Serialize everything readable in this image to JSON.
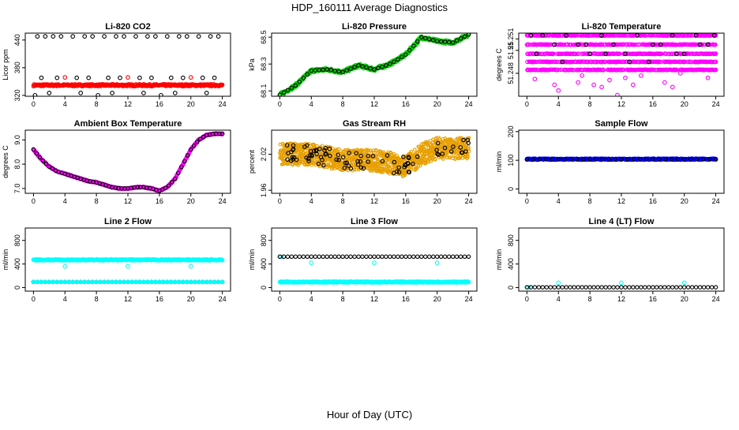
{
  "figure": {
    "title": "HDP_160111  Average Diagnostics",
    "xlabel": "Hour of Day (UTC)"
  },
  "colors": {
    "black": "#000000",
    "red": "#ff0000",
    "green": "#00cc00",
    "magenta": "#ff00ff",
    "orange": "#e8a000",
    "blue": "#0000ff",
    "cyan": "#00ffff"
  },
  "chart_data": [
    {
      "type": "scatter",
      "title": "Li-820 CO2",
      "ylabel": "Licor ppm",
      "xlim": [
        0,
        24
      ],
      "ylim": [
        318,
        455
      ],
      "xticks": [
        "0",
        "4",
        "8",
        "12",
        "16",
        "20",
        "24"
      ],
      "yticks": [
        {
          "v": 320,
          "label": "320"
        },
        {
          "v": 380,
          "label": "380"
        },
        {
          "v": 440,
          "label": "440"
        }
      ],
      "series": [
        {
          "color": "red",
          "kind": "dense",
          "pattern": "flat",
          "mean": 342,
          "amp": 2,
          "rows": [
            342
          ]
        },
        {
          "color": "red",
          "kind": "points",
          "x": [
            4,
            12,
            20
          ],
          "y": [
            359,
            359,
            359
          ]
        },
        {
          "color": "black",
          "kind": "points",
          "x": [
            0.5,
            1.5,
            2.5,
            3.5,
            5.0,
            6.5,
            7.5,
            9.0,
            10.5,
            11.5,
            13.0,
            14.5,
            15.5,
            17.0,
            18.5,
            19.5,
            21.0,
            22.5,
            23.5,
            1.0,
            3.0,
            5.5,
            7.0,
            9.5,
            11.0,
            13.5,
            15.0,
            17.5,
            19.0,
            21.5,
            23.0,
            2.0,
            6.0,
            10.0,
            14.0,
            18.0,
            22.0,
            0.2,
            8.2,
            16.2
          ],
          "y": [
            448,
            448,
            448,
            448,
            448,
            448,
            448,
            448,
            448,
            448,
            448,
            448,
            448,
            448,
            448,
            448,
            448,
            448,
            448,
            358,
            358,
            358,
            358,
            358,
            358,
            358,
            358,
            358,
            358,
            358,
            358,
            325,
            325,
            325,
            325,
            325,
            325,
            320,
            320,
            320
          ]
        }
      ]
    },
    {
      "type": "scatter",
      "title": "Li-820 Pressure",
      "ylabel": "kPa",
      "xlim": [
        0,
        24
      ],
      "ylim": [
        68.06,
        68.53
      ],
      "xticks": [
        "0",
        "4",
        "8",
        "12",
        "16",
        "20",
        "24"
      ],
      "yticks": [
        {
          "v": 68.1,
          "label": "68.1"
        },
        {
          "v": 68.3,
          "label": "68.3"
        },
        {
          "v": 68.5,
          "label": "68.5"
        }
      ],
      "series": [
        {
          "color": "green",
          "kind": "dense",
          "pattern": "curve",
          "jitter": 0.012,
          "curve": [
            [
              0,
              68.07
            ],
            [
              2,
              68.14
            ],
            [
              4,
              68.25
            ],
            [
              6,
              68.26
            ],
            [
              8,
              68.24
            ],
            [
              10,
              68.29
            ],
            [
              12,
              68.26
            ],
            [
              14,
              68.3
            ],
            [
              16,
              68.37
            ],
            [
              18,
              68.5
            ],
            [
              20,
              68.47
            ],
            [
              22,
              68.46
            ],
            [
              24,
              68.52
            ]
          ]
        },
        {
          "color": "black",
          "kind": "curvepoints",
          "every": 0.5,
          "curve": [
            [
              0,
              68.07
            ],
            [
              2,
              68.14
            ],
            [
              4,
              68.25
            ],
            [
              6,
              68.26
            ],
            [
              8,
              68.24
            ],
            [
              10,
              68.29
            ],
            [
              12,
              68.26
            ],
            [
              14,
              68.3
            ],
            [
              16,
              68.37
            ],
            [
              18,
              68.5
            ],
            [
              20,
              68.47
            ],
            [
              22,
              68.46
            ],
            [
              24,
              68.52
            ]
          ]
        }
      ]
    },
    {
      "type": "scatter",
      "title": "Li-820 Temperature",
      "ylabel": "degrees C",
      "xlim": [
        0,
        24
      ],
      "ylim": [
        51.246,
        51.2515
      ],
      "xticks": [
        "0",
        "4",
        "8",
        "12",
        "16",
        "20",
        "24"
      ],
      "yticks": [
        {
          "v": 51.248,
          "label": "51.248"
        },
        {
          "v": 51.25,
          "label": "51.25"
        },
        {
          "v": 51.251,
          "label": "51.251"
        }
      ],
      "series": [
        {
          "color": "magenta",
          "kind": "dense",
          "pattern": "rows",
          "jitter": 4e-05,
          "rows": [
            51.2513,
            51.2505,
            51.2497,
            51.249,
            51.2483
          ]
        },
        {
          "color": "magenta",
          "kind": "points",
          "x": [
            1.0,
            3.5,
            4.0,
            6.5,
            7.0,
            8.5,
            9.5,
            10.5,
            11.5,
            12.5,
            13.5,
            14.5,
            17.5,
            18.5,
            19.5,
            23.0
          ],
          "y": [
            51.2475,
            51.247,
            51.2465,
            51.2472,
            51.2478,
            51.247,
            51.2468,
            51.2474,
            51.2461,
            51.2476,
            51.247,
            51.2478,
            51.2472,
            51.2468,
            51.248,
            51.2476
          ]
        },
        {
          "color": "black",
          "kind": "points",
          "x": [
            0.5,
            2.0,
            3.5,
            5.0,
            6.5,
            8.0,
            9.5,
            11.0,
            12.5,
            14.0,
            15.5,
            17.0,
            18.5,
            20.0,
            21.5,
            23.0,
            23.8,
            1.2,
            4.5,
            7.5,
            10.0,
            13.0,
            16.0,
            19.0,
            22.0
          ],
          "y": [
            51.2513,
            51.2513,
            51.2505,
            51.2513,
            51.2505,
            51.2497,
            51.2513,
            51.2505,
            51.2497,
            51.2513,
            51.249,
            51.2505,
            51.2513,
            51.2497,
            51.2513,
            51.2505,
            51.2513,
            51.2497,
            51.249,
            51.2505,
            51.2497,
            51.249,
            51.2505,
            51.2497,
            51.2505
          ]
        }
      ]
    },
    {
      "type": "scatter",
      "title": "Ambient Box Temperature",
      "ylabel": "degrees C",
      "xlim": [
        0,
        24
      ],
      "ylim": [
        6.8,
        9.4
      ],
      "xticks": [
        "0",
        "4",
        "8",
        "12",
        "16",
        "20",
        "24"
      ],
      "yticks": [
        {
          "v": 7.0,
          "label": "7.0"
        },
        {
          "v": 8.0,
          "label": "8.0"
        },
        {
          "v": 9.0,
          "label": "9.0"
        }
      ],
      "series": [
        {
          "color": "magenta",
          "kind": "dense",
          "pattern": "curve",
          "jitter": 0.02,
          "curve": [
            [
              0,
              8.6
            ],
            [
              1,
              8.2
            ],
            [
              2,
              7.9
            ],
            [
              3,
              7.7
            ],
            [
              4,
              7.6
            ],
            [
              5,
              7.5
            ],
            [
              6,
              7.4
            ],
            [
              7,
              7.3
            ],
            [
              8,
              7.25
            ],
            [
              9,
              7.15
            ],
            [
              10,
              7.05
            ],
            [
              11,
              7.0
            ],
            [
              12,
              7.0
            ],
            [
              13,
              7.05
            ],
            [
              14,
              7.05
            ],
            [
              15,
              7.0
            ],
            [
              16,
              6.9
            ],
            [
              17,
              7.05
            ],
            [
              18,
              7.4
            ],
            [
              19,
              8.0
            ],
            [
              20,
              8.6
            ],
            [
              21,
              9.0
            ],
            [
              22,
              9.2
            ],
            [
              23,
              9.25
            ],
            [
              24,
              9.25
            ]
          ]
        },
        {
          "color": "black",
          "kind": "curvepoints",
          "every": 0.4,
          "curve": [
            [
              0,
              8.6
            ],
            [
              1,
              8.2
            ],
            [
              2,
              7.9
            ],
            [
              3,
              7.7
            ],
            [
              4,
              7.6
            ],
            [
              5,
              7.5
            ],
            [
              6,
              7.4
            ],
            [
              7,
              7.3
            ],
            [
              8,
              7.25
            ],
            [
              9,
              7.15
            ],
            [
              10,
              7.05
            ],
            [
              11,
              7.0
            ],
            [
              12,
              7.0
            ],
            [
              13,
              7.05
            ],
            [
              14,
              7.05
            ],
            [
              15,
              7.0
            ],
            [
              16,
              6.9
            ],
            [
              17,
              7.05
            ],
            [
              18,
              7.4
            ],
            [
              19,
              8.0
            ],
            [
              20,
              8.6
            ],
            [
              21,
              9.0
            ],
            [
              22,
              9.2
            ],
            [
              23,
              9.25
            ],
            [
              24,
              9.25
            ]
          ]
        }
      ]
    },
    {
      "type": "scatter",
      "title": "Gas Stream RH",
      "ylabel": "percent",
      "xlim": [
        0,
        24
      ],
      "ylim": [
        1.955,
        2.06
      ],
      "xticks": [
        "0",
        "4",
        "8",
        "12",
        "16",
        "20",
        "24"
      ],
      "yticks": [
        {
          "v": 1.96,
          "label": "1.96"
        },
        {
          "v": 2.02,
          "label": "2.02"
        }
      ],
      "series": [
        {
          "color": "orange",
          "kind": "dense",
          "pattern": "band",
          "jitter": 0.018,
          "curve": [
            [
              0,
              2.02
            ],
            [
              4,
              2.02
            ],
            [
              8,
              2.01
            ],
            [
              12,
              2.01
            ],
            [
              16,
              2.0
            ],
            [
              18,
              2.02
            ],
            [
              20,
              2.03
            ],
            [
              24,
              2.03
            ]
          ]
        },
        {
          "color": "black",
          "kind": "scatterband",
          "count": 90,
          "jitter": 0.015,
          "curve": [
            [
              0,
              2.02
            ],
            [
              4,
              2.02
            ],
            [
              8,
              2.01
            ],
            [
              12,
              2.01
            ],
            [
              16,
              2.0
            ],
            [
              18,
              2.02
            ],
            [
              20,
              2.03
            ],
            [
              24,
              2.03
            ]
          ]
        }
      ]
    },
    {
      "type": "scatter",
      "title": "Sample Flow",
      "ylabel": "ml/min",
      "xlim": [
        0,
        24
      ],
      "ylim": [
        -15,
        205
      ],
      "xticks": [
        "0",
        "4",
        "8",
        "12",
        "16",
        "20",
        "24"
      ],
      "yticks": [
        {
          "v": 0,
          "label": "0"
        },
        {
          "v": 100,
          "label": "100"
        },
        {
          "v": 200,
          "label": "200"
        }
      ],
      "series": [
        {
          "color": "blue",
          "kind": "dense",
          "pattern": "flat",
          "amp": 2,
          "rows": [
            104
          ]
        },
        {
          "color": "black",
          "kind": "linepoints",
          "every": 0.8,
          "y": 104
        }
      ]
    },
    {
      "type": "scatter",
      "title": "Line 2 Flow",
      "ylabel": "ml/min",
      "xlim": [
        0,
        24
      ],
      "ylim": [
        -60,
        1010
      ],
      "xticks": [
        "0",
        "4",
        "8",
        "12",
        "16",
        "20",
        "24"
      ],
      "yticks": [
        {
          "v": 0,
          "label": "0"
        },
        {
          "v": 400,
          "label": "400"
        },
        {
          "v": 800,
          "label": "800"
        }
      ],
      "series": [
        {
          "color": "cyan",
          "kind": "dense",
          "pattern": "flat",
          "amp": 8,
          "rows": [
            470
          ]
        },
        {
          "color": "cyan",
          "kind": "points",
          "x": [
            0.2,
            4,
            12,
            20
          ],
          "y": [
            470,
            360,
            360,
            360
          ]
        },
        {
          "color": "black",
          "kind": "linepoints",
          "every": 0.5,
          "y": 95
        },
        {
          "color": "cyan",
          "kind": "linepoints",
          "every": 0.5,
          "y": 95,
          "fill": true
        }
      ]
    },
    {
      "type": "scatter",
      "title": "Line 3 Flow",
      "ylabel": "ml/min",
      "xlim": [
        0,
        24
      ],
      "ylim": [
        -60,
        1010
      ],
      "xticks": [
        "0",
        "4",
        "8",
        "12",
        "16",
        "20",
        "24"
      ],
      "yticks": [
        {
          "v": 0,
          "label": "0"
        },
        {
          "v": 400,
          "label": "400"
        },
        {
          "v": 800,
          "label": "800"
        }
      ],
      "series": [
        {
          "color": "cyan",
          "kind": "dense",
          "pattern": "flat",
          "amp": 8,
          "rows": [
            95
          ]
        },
        {
          "color": "cyan",
          "kind": "points",
          "x": [
            0.2,
            4,
            12,
            20
          ],
          "y": [
            520,
            420,
            420,
            420
          ]
        },
        {
          "color": "black",
          "kind": "linepoints",
          "every": 0.5,
          "y": 525
        }
      ]
    },
    {
      "type": "scatter",
      "title": "Line 4 (LT) Flow",
      "ylabel": "ml/min",
      "xlim": [
        0,
        24
      ],
      "ylim": [
        -60,
        1010
      ],
      "xticks": [
        "0",
        "4",
        "8",
        "12",
        "16",
        "20",
        "24"
      ],
      "yticks": [
        {
          "v": 0,
          "label": "0"
        },
        {
          "v": 400,
          "label": "400"
        },
        {
          "v": 800,
          "label": "800"
        }
      ],
      "series": [
        {
          "color": "cyan",
          "kind": "points",
          "x": [
            0.2,
            4,
            12,
            20
          ],
          "y": [
            5,
            80,
            80,
            80
          ]
        },
        {
          "color": "black",
          "kind": "linepoints",
          "every": 0.5,
          "y": 5
        }
      ]
    }
  ]
}
